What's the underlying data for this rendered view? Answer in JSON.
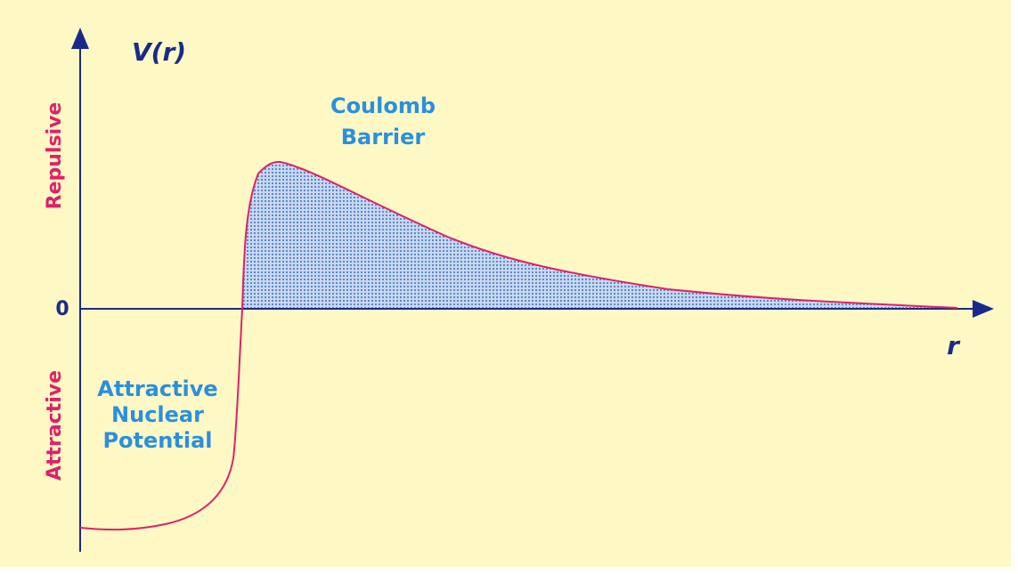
{
  "axis": {
    "y_label": "V(r)",
    "x_label": "r",
    "zero": "0",
    "repulsive": "Repulsive",
    "attractive": "Attractive"
  },
  "regions": {
    "barrier": [
      "Coulomb",
      "Barrier"
    ],
    "nuclear": [
      "Attractive",
      "Nuclear",
      "Potential"
    ]
  }
}
